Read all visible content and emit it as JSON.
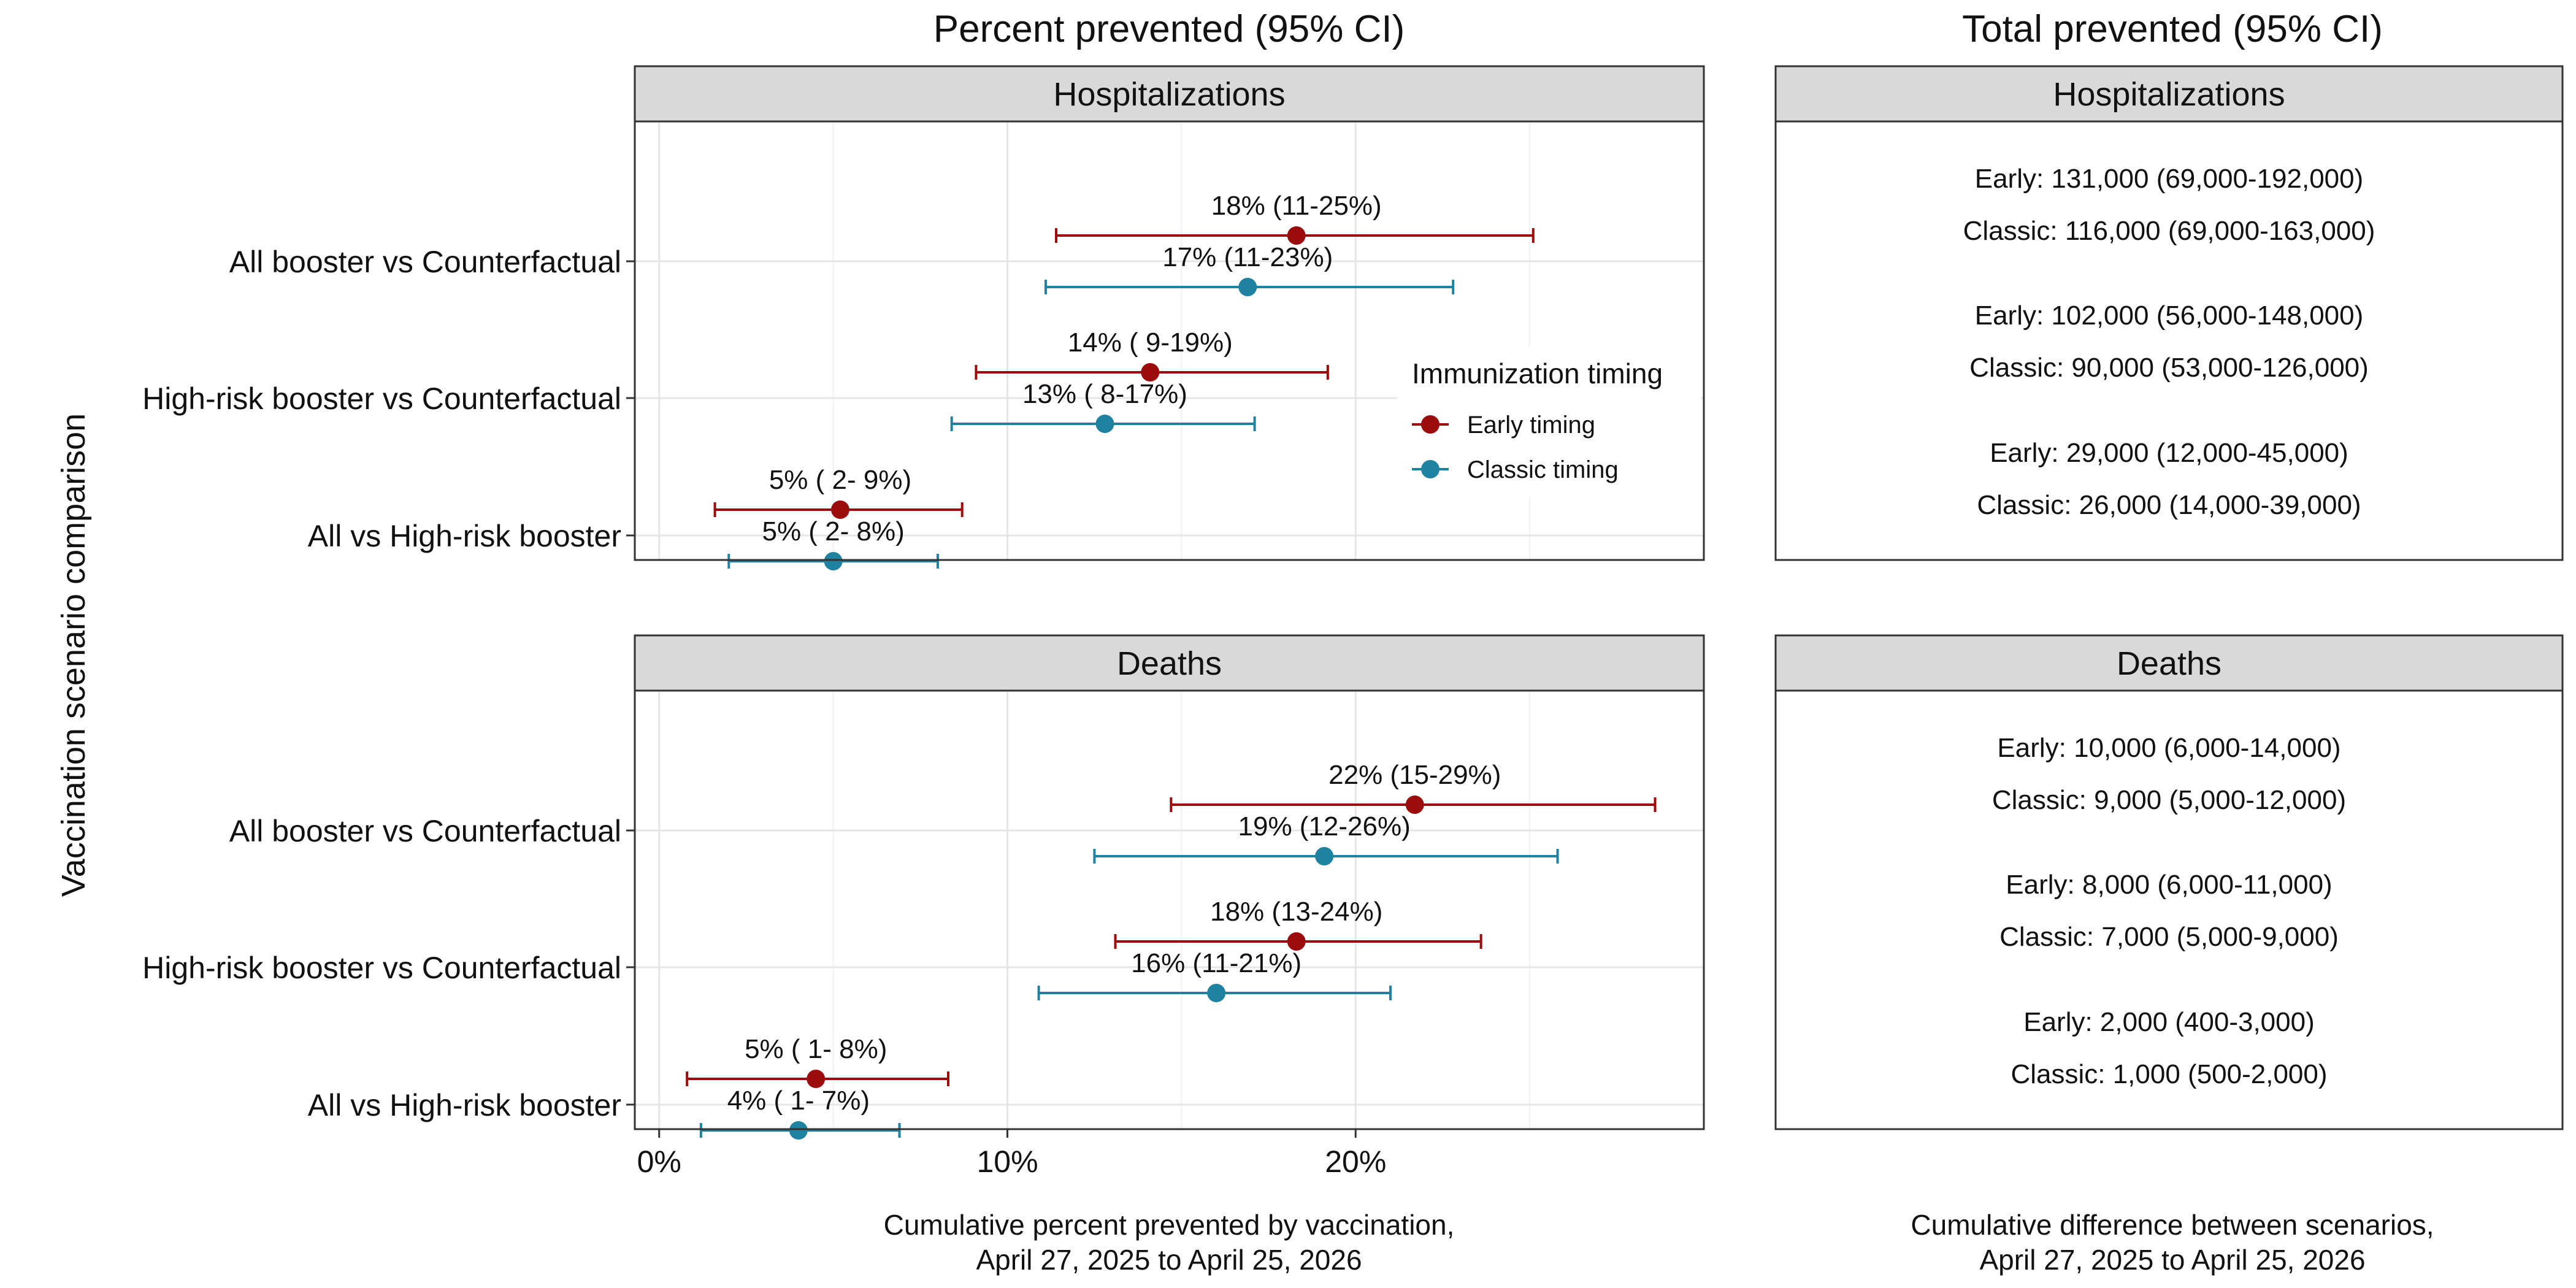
{
  "left_title": "Percent prevented (95% CI)",
  "right_title": "Total prevented (95% CI)",
  "y_axis_title": "Vaccination scenario comparison",
  "left_x_caption": [
    "Cumulative percent prevented by vaccination,",
    "April 27, 2025 to April 25, 2026"
  ],
  "right_x_caption": [
    "Cumulative difference between scenarios,",
    "April 27, 2025 to April 25, 2026"
  ],
  "colors": {
    "early": "#9b0c0c",
    "classic": "#1f82a0"
  },
  "legend": {
    "title": "Immunization timing",
    "placement": "inside-right of top panel",
    "items": [
      {
        "key": "early",
        "label": "Early timing"
      },
      {
        "key": "classic",
        "label": "Classic timing"
      }
    ]
  },
  "chart_data": {
    "type": "scatter",
    "xlim": [
      -0.7,
      30
    ],
    "x_ticks": [
      0,
      10,
      20
    ],
    "x_tick_labels": [
      "0%",
      "10%",
      "20%"
    ],
    "grid": true,
    "categories": [
      "All booster vs Counterfactual",
      "High-risk booster vs Counterfactual",
      "All vs High-risk booster"
    ],
    "panels": [
      {
        "title": "Hospitalizations",
        "series": [
          {
            "name": "Early timing",
            "key": "early",
            "points": [
              {
                "category": "All booster vs Counterfactual",
                "est": 18.3,
                "lo": 11.4,
                "hi": 25.1,
                "label": "18% (11-25%)"
              },
              {
                "category": "High-risk booster vs Counterfactual",
                "est": 14.1,
                "lo": 9.1,
                "hi": 19.2,
                "label": "14% ( 9-19%)"
              },
              {
                "category": "All vs High-risk booster",
                "est": 5.2,
                "lo": 1.6,
                "hi": 8.7,
                "label": "5% ( 2- 9%)"
              }
            ]
          },
          {
            "name": "Classic timing",
            "key": "classic",
            "points": [
              {
                "category": "All booster vs Counterfactual",
                "est": 16.9,
                "lo": 11.1,
                "hi": 22.8,
                "label": "17% (11-23%)"
              },
              {
                "category": "High-risk booster vs Counterfactual",
                "est": 12.8,
                "lo": 8.4,
                "hi": 17.1,
                "label": "13% ( 8-17%)"
              },
              {
                "category": "All vs High-risk booster",
                "est": 5.0,
                "lo": 2.0,
                "hi": 8.0,
                "label": "5% ( 2- 8%)"
              }
            ]
          }
        ]
      },
      {
        "title": "Deaths",
        "series": [
          {
            "name": "Early timing",
            "key": "early",
            "points": [
              {
                "category": "All booster vs Counterfactual",
                "est": 21.7,
                "lo": 14.7,
                "hi": 28.6,
                "label": "22% (15-29%)"
              },
              {
                "category": "High-risk booster vs Counterfactual",
                "est": 18.3,
                "lo": 13.1,
                "hi": 23.6,
                "label": "18% (13-24%)"
              },
              {
                "category": "All vs High-risk booster",
                "est": 4.5,
                "lo": 0.8,
                "hi": 8.3,
                "label": "5% ( 1- 8%)"
              }
            ]
          },
          {
            "name": "Classic timing",
            "key": "classic",
            "points": [
              {
                "category": "All booster vs Counterfactual",
                "est": 19.1,
                "lo": 12.5,
                "hi": 25.8,
                "label": "19% (12-26%)"
              },
              {
                "category": "High-risk booster vs Counterfactual",
                "est": 16.0,
                "lo": 10.9,
                "hi": 21.0,
                "label": "16% (11-21%)"
              },
              {
                "category": "All vs High-risk booster",
                "est": 4.0,
                "lo": 1.2,
                "hi": 6.9,
                "label": "4% ( 1- 7%)"
              }
            ]
          }
        ]
      }
    ],
    "totals": [
      {
        "title": "Hospitalizations",
        "rows": [
          {
            "early": "Early: 131,000 (69,000-192,000)",
            "classic": "Classic: 116,000 (69,000-163,000)"
          },
          {
            "early": "Early: 102,000 (56,000-148,000)",
            "classic": "Classic: 90,000 (53,000-126,000)"
          },
          {
            "early": "Early: 29,000 (12,000-45,000)",
            "classic": "Classic: 26,000 (14,000-39,000)"
          }
        ]
      },
      {
        "title": "Deaths",
        "rows": [
          {
            "early": "Early: 10,000 (6,000-14,000)",
            "classic": "Classic: 9,000 (5,000-12,000)"
          },
          {
            "early": "Early: 8,000 (6,000-11,000)",
            "classic": "Classic: 7,000 (5,000-9,000)"
          },
          {
            "early": "Early: 2,000 (400-3,000)",
            "classic": "Classic: 1,000 (500-2,000)"
          }
        ]
      }
    ]
  }
}
